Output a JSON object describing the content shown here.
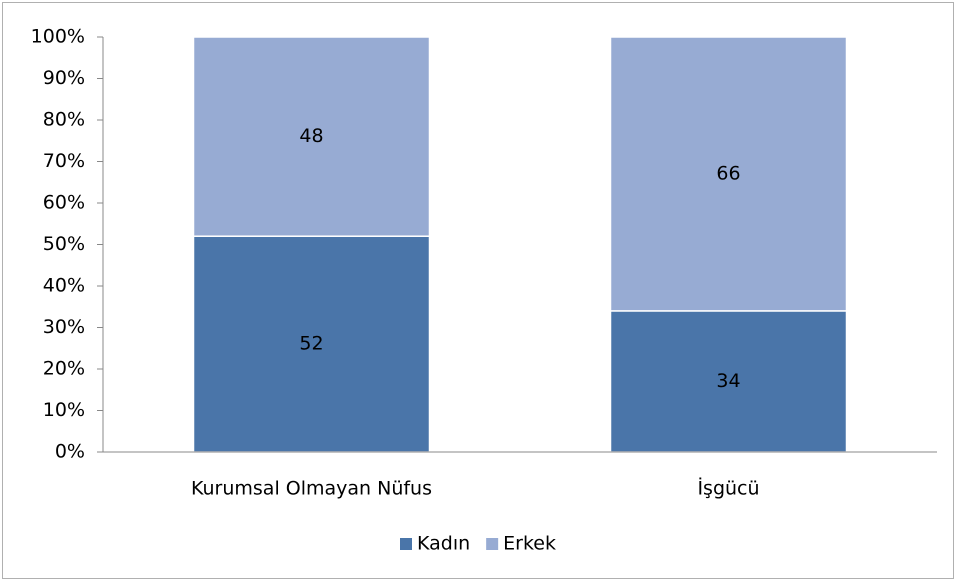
{
  "chart_data": {
    "type": "stacked_bar",
    "categories": [
      "Kurumsal Olmayan Nüfus",
      "İşgücü"
    ],
    "series": [
      {
        "name": "Kadın",
        "color": "#4a75a9",
        "values": [
          52,
          34
        ]
      },
      {
        "name": "Erkek",
        "color": "#97abd3",
        "values": [
          48,
          66
        ]
      }
    ],
    "ylim": [
      0,
      100
    ],
    "yticks": [
      {
        "value": 0,
        "label": "0%"
      },
      {
        "value": 10,
        "label": "10%"
      },
      {
        "value": 20,
        "label": "20%"
      },
      {
        "value": 30,
        "label": "30%"
      },
      {
        "value": 40,
        "label": "40%"
      },
      {
        "value": 50,
        "label": "50%"
      },
      {
        "value": 60,
        "label": "60%"
      },
      {
        "value": 70,
        "label": "70%"
      },
      {
        "value": 80,
        "label": "80%"
      },
      {
        "value": 90,
        "label": "90%"
      },
      {
        "value": 100,
        "label": "100%"
      }
    ],
    "grid": false,
    "legend": "bottom"
  }
}
